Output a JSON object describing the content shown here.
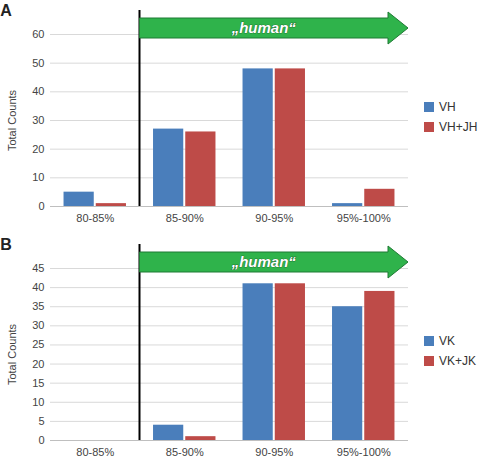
{
  "chart_data": [
    {
      "type": "bar",
      "title": "A",
      "annotations": [
        "„human“"
      ],
      "y_label": "Total Counts",
      "categories": [
        "80-85%",
        "85-90%",
        "90-95%",
        "95%-100%"
      ],
      "series": [
        {
          "name": "VH",
          "color": "#4a7ebb",
          "values": [
            5,
            27,
            48,
            1
          ]
        },
        {
          "name": "VH+JH",
          "color": "#be4b48",
          "values": [
            1,
            26,
            48,
            6
          ]
        }
      ],
      "ylim": [
        0,
        60
      ],
      "yticks": [
        0,
        10,
        20,
        30,
        40,
        50,
        60
      ],
      "grid": true,
      "legend": "right"
    },
    {
      "type": "bar",
      "title": "B",
      "annotations": [
        "„human“"
      ],
      "y_label": "Total Counts",
      "categories": [
        "80-85%",
        "85-90%",
        "90-95%",
        "95%-100%"
      ],
      "series": [
        {
          "name": "VK",
          "color": "#4a7ebb",
          "values": [
            0,
            4,
            41,
            35
          ]
        },
        {
          "name": "VK+JK",
          "color": "#be4b48",
          "values": [
            0,
            1,
            41,
            39
          ]
        }
      ],
      "ylim": [
        0,
        45
      ],
      "yticks": [
        0,
        5,
        10,
        15,
        20,
        25,
        30,
        35,
        40,
        45
      ],
      "grid": true,
      "legend": "right"
    }
  ]
}
